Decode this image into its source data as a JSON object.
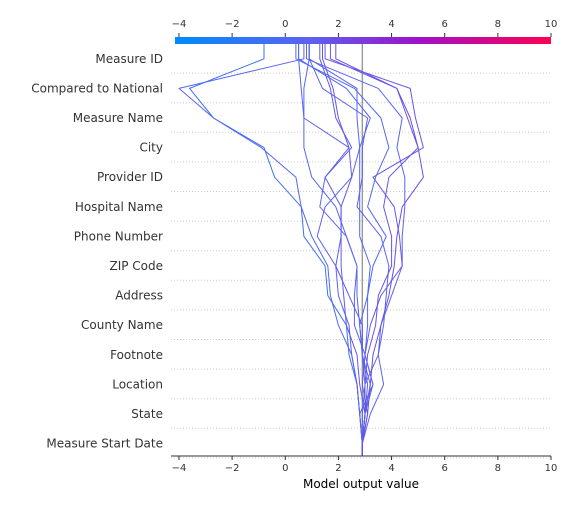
{
  "chart_data": {
    "type": "line",
    "title": "",
    "xlabel": "Model output value",
    "ylabel": "",
    "xlim": [
      -4.3,
      10
    ],
    "xticks": [
      -4,
      -2,
      0,
      2,
      4,
      6,
      8,
      10
    ],
    "xtick_labels": [
      "−4",
      "−2",
      "0",
      "2",
      "4",
      "6",
      "8",
      "10"
    ],
    "base_value": 2.9,
    "features": [
      "Measure Start Date",
      "State",
      "Location",
      "Footnote",
      "County Name",
      "Address",
      "ZIP Code",
      "Phone Number",
      "Hospital Name",
      "Provider ID",
      "City",
      "Measure Name",
      "Compared to National",
      "Measure ID"
    ],
    "grid": true,
    "colorbar": {
      "range": [
        -4,
        10
      ],
      "low_color": "#008bfb",
      "high_color": "#ff0052"
    },
    "series": [
      {
        "values": [
          2.9,
          2.8,
          2.7,
          2.4,
          2.3,
          1.6,
          1.5,
          0.7,
          0.6,
          -0.4,
          -0.8,
          -2.7,
          -3.6,
          -0.8
        ]
      },
      {
        "values": [
          2.9,
          2.8,
          2.7,
          2.5,
          2.0,
          1.7,
          1.6,
          1.0,
          0.6,
          0.4,
          -0.9,
          -2.7,
          -4.0,
          0.7
        ]
      },
      {
        "values": [
          2.9,
          2.8,
          2.7,
          2.5,
          2.4,
          2.0,
          1.9,
          1.2,
          1.5,
          2.5,
          2.8,
          2.7,
          2.7,
          0.9
        ]
      },
      {
        "values": [
          2.9,
          3.0,
          2.8,
          2.7,
          2.3,
          2.2,
          2.1,
          2.1,
          2.1,
          1.5,
          2.5,
          1.9,
          1.7,
          1.3
        ]
      },
      {
        "values": [
          2.9,
          3.0,
          3.2,
          2.9,
          2.9,
          2.4,
          1.9,
          2.1,
          2.1,
          2.5,
          2.4,
          2.0,
          1.8,
          1.4
        ]
      },
      {
        "values": [
          2.9,
          2.8,
          3.3,
          3.0,
          2.6,
          2.6,
          2.7,
          2.3,
          1.3,
          1.5,
          2.4,
          0.7,
          0.7,
          0.9
        ]
      },
      {
        "values": [
          2.9,
          3.0,
          3.1,
          2.9,
          2.8,
          2.7,
          2.7,
          2.3,
          1.9,
          1.0,
          0.7,
          0.7,
          0.6,
          0.5
        ]
      },
      {
        "values": [
          2.9,
          2.9,
          3.0,
          2.9,
          2.8,
          3.1,
          3.2,
          2.8,
          2.8,
          2.8,
          2.8,
          3.2,
          2.3,
          0.5
        ]
      },
      {
        "values": [
          2.9,
          3.0,
          3.3,
          3.0,
          3.1,
          3.1,
          3.3,
          3.8,
          3.1,
          3.4,
          3.9,
          3.6,
          2.6,
          0.4
        ]
      },
      {
        "values": [
          2.9,
          3.0,
          3.0,
          3.5,
          3.7,
          3.8,
          3.9,
          3.6,
          2.7,
          2.9,
          2.9,
          3.1,
          1.4,
          0.9
        ]
      },
      {
        "values": [
          2.9,
          3.2,
          3.7,
          3.5,
          3.6,
          4.0,
          4.4,
          4.4,
          4.5,
          4.5,
          4.2,
          4.4,
          3.5,
          0.8
        ]
      },
      {
        "values": [
          2.9,
          3.1,
          3.2,
          3.3,
          3.6,
          3.9,
          4.1,
          4.2,
          4.4,
          5.2,
          5.0,
          4.7,
          4.2,
          1.9
        ]
      },
      {
        "values": [
          2.9,
          3.0,
          3.0,
          3.1,
          3.4,
          3.5,
          4.0,
          4.0,
          3.7,
          3.9,
          5.0,
          4.6,
          4.2,
          1.7
        ]
      },
      {
        "values": [
          2.9,
          3.1,
          2.9,
          3.0,
          3.2,
          3.6,
          4.4,
          4.3,
          4.1,
          3.3,
          5.2,
          4.9,
          4.7,
          1.5
        ]
      }
    ]
  }
}
